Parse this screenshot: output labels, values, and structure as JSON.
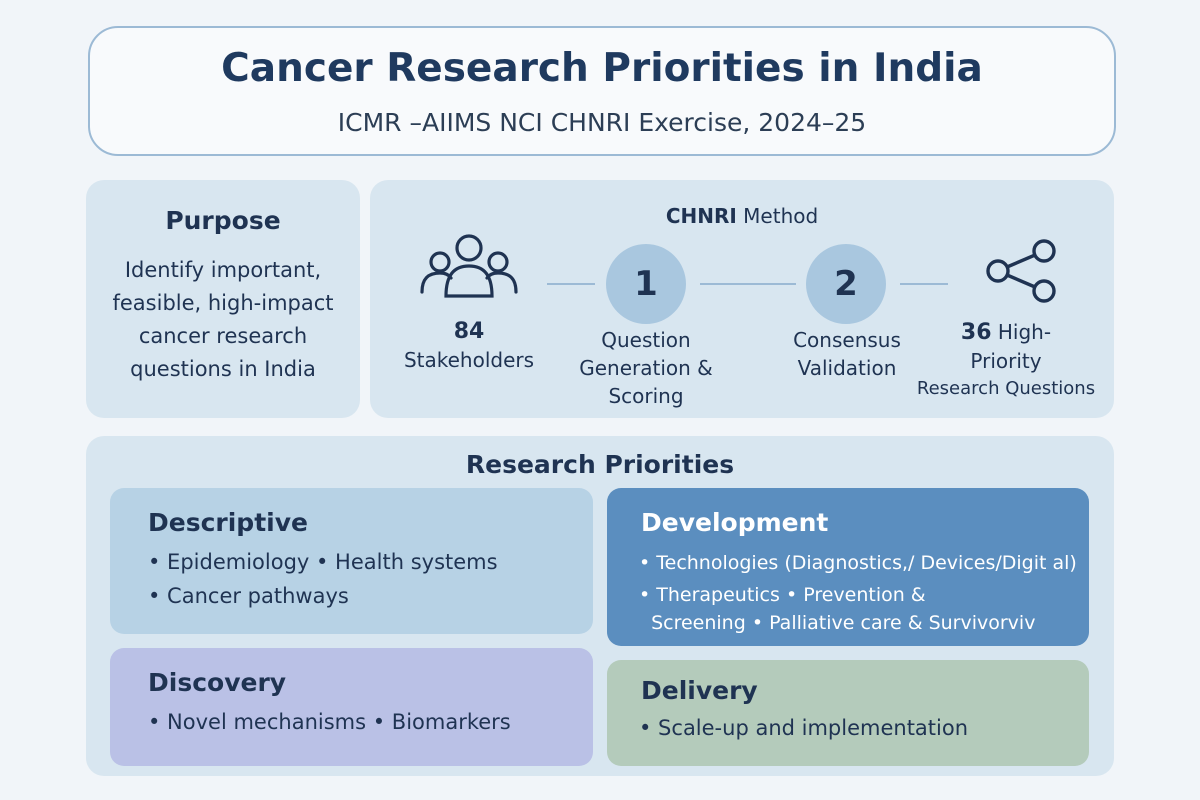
{
  "header": {
    "title": "Cancer Research Priorities in India",
    "subtitle": "ICMR –AIIMS NCI CHNRI Exercise, 2024–25"
  },
  "purpose": {
    "title": "Purpose",
    "lines": [
      "Identify important,",
      "feasible, high-impact",
      "cancer research",
      "questions in India"
    ]
  },
  "method": {
    "title_bold": "CHNRI",
    "title_rest": " Method",
    "stakeholders": {
      "number": "84",
      "label": "Stakeholders",
      "icon": "people-group-icon"
    },
    "step1": {
      "number": "1",
      "lines": [
        "Question",
        "Generation &",
        "Scoring"
      ]
    },
    "step2": {
      "number": "2",
      "lines": [
        "Consensus",
        "Validation"
      ]
    },
    "output": {
      "number": "36",
      "line1_rest": " High-",
      "line2": "Priority",
      "line3": "Research Questions",
      "icon": "share-network-icon"
    }
  },
  "priorities": {
    "title": "Research Priorities",
    "descriptive": {
      "title": "Descriptive",
      "lines": [
        "• Epidemiology • Health systems",
        "• Cancer pathways"
      ]
    },
    "development": {
      "title": "Development",
      "lines": [
        "• Technologies (Diagnostics,/ Devices/Digit al)",
        "• Therapeutics • Prevention &",
        "  Screening • Palliative care & Survivorviv"
      ]
    },
    "discovery": {
      "title": "Discovery",
      "lines": [
        "• Novel mechanisms • Biomarkers"
      ]
    },
    "delivery": {
      "title": "Delivery",
      "lines": [
        "• Scale-up and implementation"
      ]
    }
  },
  "colors": {
    "accent": "#1f3a5f",
    "panel": "#d8e6f0",
    "descriptive": "#b7d2e5",
    "development": "#5b8ebf",
    "discovery": "#bac1e6",
    "delivery": "#b4cbbb"
  }
}
